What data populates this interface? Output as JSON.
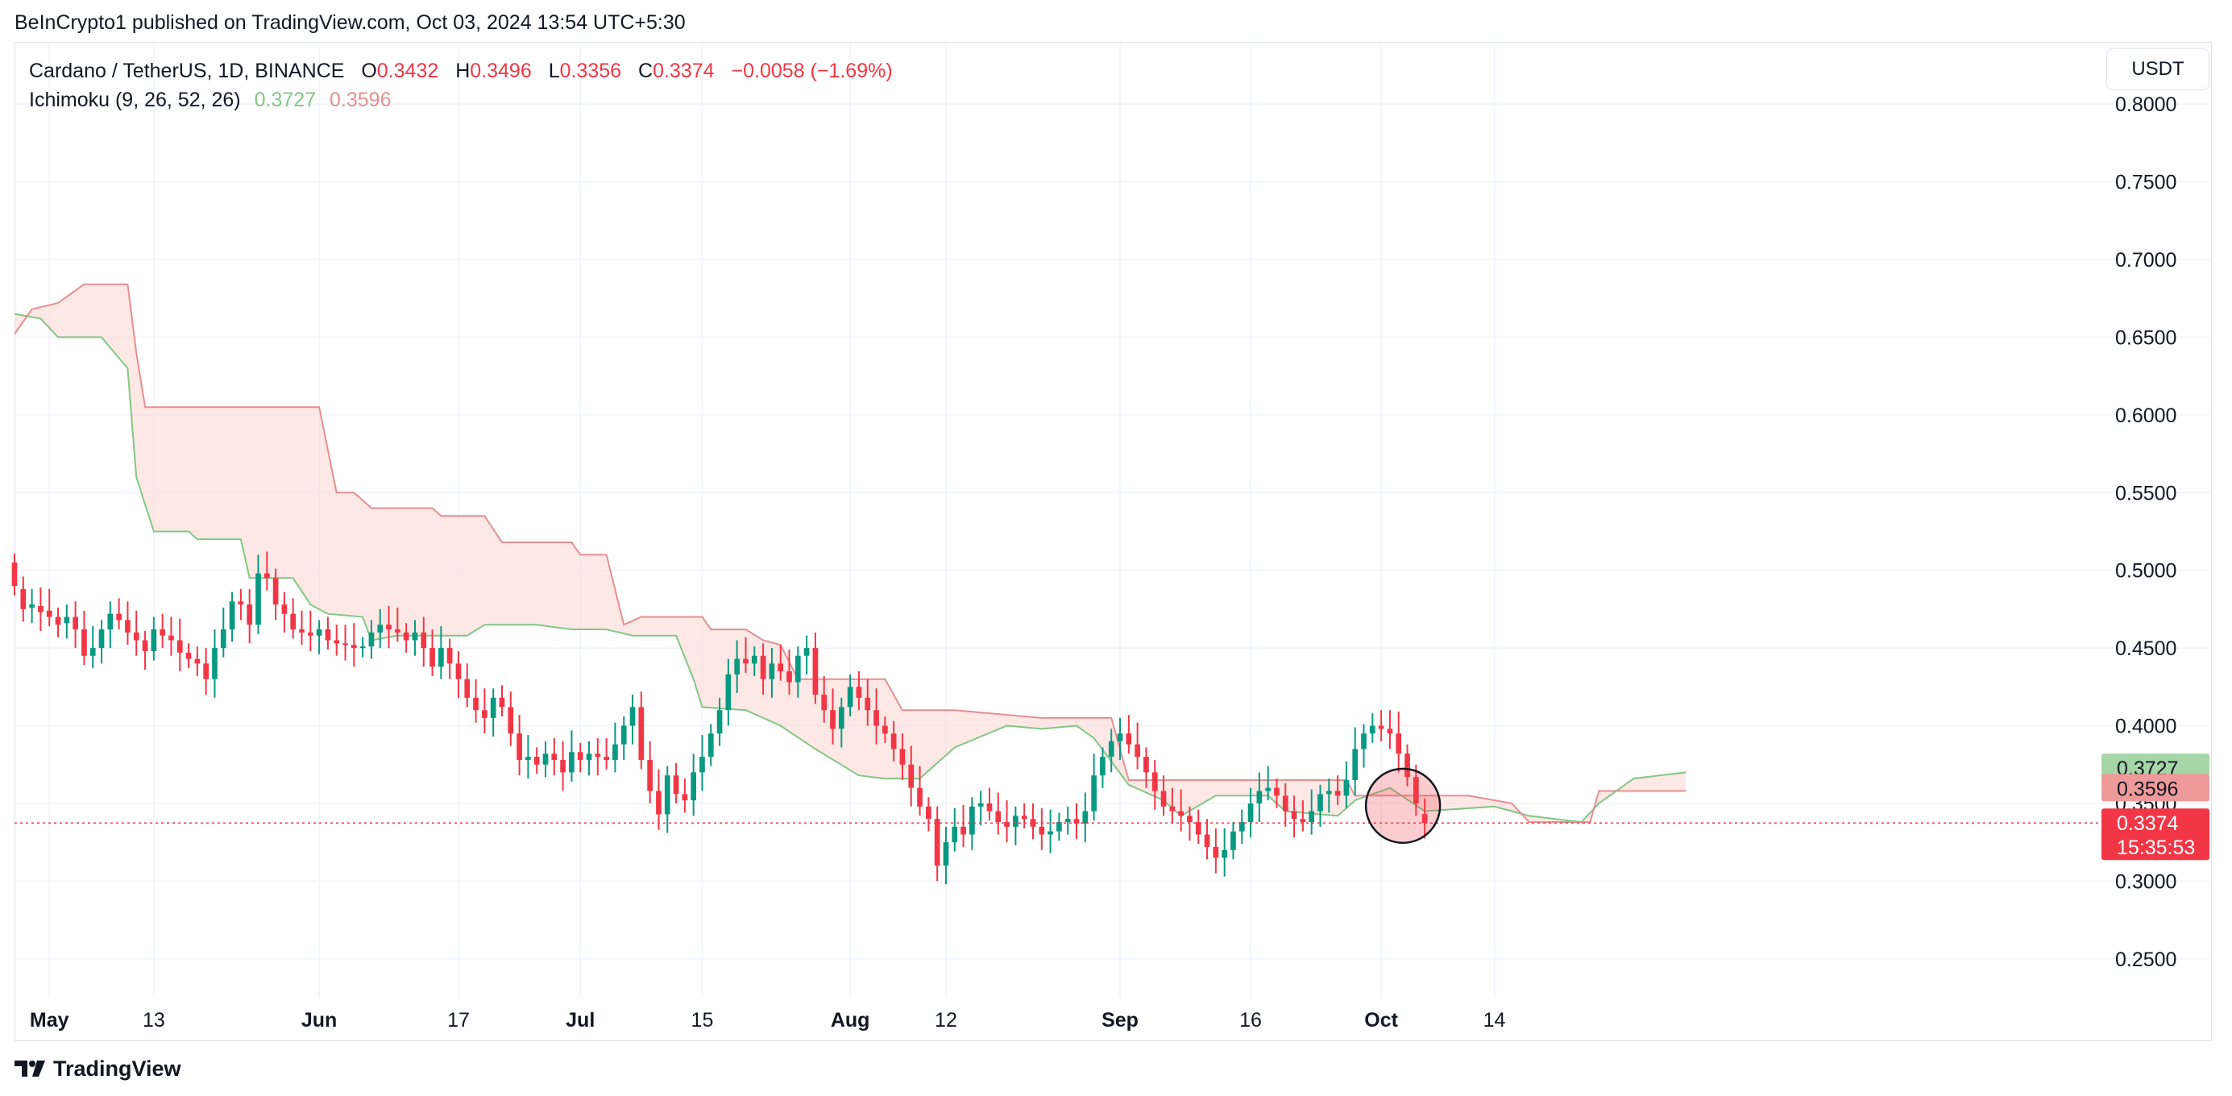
{
  "header": {
    "publisher_line": "BeInCrypto1 published on TradingView.com, Oct 03, 2024 13:54 UTC+5:30"
  },
  "legend": {
    "symbol": "Cardano / TetherUS, 1D, BINANCE",
    "open_key": "O",
    "open": "0.3432",
    "high_key": "H",
    "high": "0.3496",
    "low_key": "L",
    "low": "0.3356",
    "close_key": "C",
    "close": "0.3374",
    "change": "−0.0058 (−1.69%)",
    "indicator": "Ichimoku (9, 26, 52, 26)",
    "span_a": "0.3727",
    "span_b": "0.3596"
  },
  "currency_button": "USDT",
  "footer": {
    "brand": "TradingView"
  },
  "price_tags": {
    "span_a": "0.3727",
    "span_b": "0.3596",
    "last_price": "0.3374",
    "countdown": "15:35:53"
  },
  "colors": {
    "up": "#089981",
    "down": "#f23645",
    "span_a_line": "#81c784",
    "span_b_line": "#e58f8f",
    "cloud_fill": "#fbd9d6",
    "grid": "#f0f3fa",
    "axis_text": "#131722"
  },
  "chart_data": {
    "type": "candlestick",
    "symbol": "ADAUSDT",
    "interval": "1D",
    "y_axis": {
      "ticks": [
        "0.2500",
        "0.3000",
        "0.3500",
        "0.4000",
        "0.4500",
        "0.5000",
        "0.5500",
        "0.6000",
        "0.6500",
        "0.7000",
        "0.7500",
        "0.8000"
      ],
      "range": [
        0.225,
        0.84
      ]
    },
    "x_axis": {
      "range_days": [
        -4,
        235
      ],
      "labels": [
        {
          "t": 0,
          "label": "May",
          "bold": true
        },
        {
          "t": 12,
          "label": "13",
          "bold": false
        },
        {
          "t": 31,
          "label": "Jun",
          "bold": true
        },
        {
          "t": 47,
          "label": "17",
          "bold": false
        },
        {
          "t": 61,
          "label": "Jul",
          "bold": true
        },
        {
          "t": 75,
          "label": "15",
          "bold": false
        },
        {
          "t": 92,
          "label": "Aug",
          "bold": true
        },
        {
          "t": 103,
          "label": "12",
          "bold": false
        },
        {
          "t": 123,
          "label": "Sep",
          "bold": true
        },
        {
          "t": 138,
          "label": "16",
          "bold": false
        },
        {
          "t": 153,
          "label": "Oct",
          "bold": true
        },
        {
          "t": 166,
          "label": "14",
          "bold": false
        }
      ]
    },
    "candles_close": [
      0.49,
      0.475,
      0.478,
      0.473,
      0.47,
      0.465,
      0.47,
      0.462,
      0.445,
      0.45,
      0.462,
      0.472,
      0.468,
      0.46,
      0.455,
      0.448,
      0.462,
      0.458,
      0.455,
      0.447,
      0.443,
      0.44,
      0.43,
      0.45,
      0.462,
      0.48,
      0.478,
      0.465,
      0.498,
      0.495,
      0.478,
      0.472,
      0.462,
      0.46,
      0.458,
      0.462,
      0.455,
      0.453,
      0.452,
      0.45,
      0.451,
      0.46,
      0.465,
      0.462,
      0.46,
      0.455,
      0.46,
      0.45,
      0.438,
      0.45,
      0.44,
      0.43,
      0.418,
      0.41,
      0.405,
      0.418,
      0.412,
      0.395,
      0.378,
      0.38,
      0.375,
      0.382,
      0.378,
      0.37,
      0.383,
      0.378,
      0.382,
      0.38,
      0.378,
      0.388,
      0.4,
      0.412,
      0.378,
      0.358,
      0.343,
      0.368,
      0.356,
      0.352,
      0.37,
      0.38,
      0.395,
      0.41,
      0.433,
      0.443,
      0.44,
      0.445,
      0.43,
      0.44,
      0.435,
      0.428,
      0.445,
      0.45,
      0.42,
      0.41,
      0.398,
      0.412,
      0.425,
      0.418,
      0.41,
      0.4,
      0.395,
      0.385,
      0.375,
      0.36,
      0.348,
      0.34,
      0.31,
      0.325,
      0.335,
      0.33,
      0.348,
      0.35,
      0.345,
      0.338,
      0.335,
      0.342,
      0.34,
      0.335,
      0.33,
      0.332,
      0.338,
      0.34,
      0.337,
      0.345,
      0.368,
      0.38,
      0.39,
      0.395,
      0.388,
      0.38,
      0.37,
      0.358,
      0.348,
      0.345,
      0.342,
      0.338,
      0.33,
      0.322,
      0.315,
      0.32,
      0.332,
      0.338,
      0.35,
      0.358,
      0.36,
      0.355,
      0.345,
      0.34,
      0.338,
      0.345,
      0.356,
      0.358,
      0.355,
      0.365,
      0.385,
      0.395,
      0.4,
      0.398,
      0.395,
      0.382,
      0.367,
      0.35,
      0.3374
    ],
    "candles_open": [
      0.505,
      0.488,
      0.476,
      0.477,
      0.474,
      0.47,
      0.466,
      0.47,
      0.462,
      0.445,
      0.45,
      0.462,
      0.472,
      0.468,
      0.46,
      0.455,
      0.448,
      0.462,
      0.458,
      0.455,
      0.447,
      0.443,
      0.44,
      0.43,
      0.45,
      0.462,
      0.48,
      0.478,
      0.465,
      0.498,
      0.495,
      0.478,
      0.472,
      0.462,
      0.46,
      0.458,
      0.462,
      0.455,
      0.453,
      0.452,
      0.45,
      0.451,
      0.46,
      0.465,
      0.462,
      0.46,
      0.455,
      0.46,
      0.45,
      0.438,
      0.45,
      0.44,
      0.43,
      0.418,
      0.41,
      0.405,
      0.418,
      0.412,
      0.395,
      0.378,
      0.38,
      0.375,
      0.382,
      0.378,
      0.37,
      0.383,
      0.378,
      0.382,
      0.38,
      0.378,
      0.388,
      0.4,
      0.412,
      0.378,
      0.358,
      0.343,
      0.368,
      0.356,
      0.352,
      0.37,
      0.38,
      0.395,
      0.41,
      0.433,
      0.443,
      0.44,
      0.445,
      0.43,
      0.44,
      0.435,
      0.428,
      0.445,
      0.45,
      0.42,
      0.41,
      0.398,
      0.412,
      0.425,
      0.418,
      0.41,
      0.4,
      0.395,
      0.385,
      0.375,
      0.36,
      0.348,
      0.34,
      0.31,
      0.325,
      0.335,
      0.33,
      0.348,
      0.35,
      0.345,
      0.338,
      0.335,
      0.342,
      0.34,
      0.335,
      0.33,
      0.332,
      0.338,
      0.34,
      0.337,
      0.345,
      0.368,
      0.38,
      0.39,
      0.395,
      0.388,
      0.38,
      0.37,
      0.358,
      0.348,
      0.345,
      0.342,
      0.338,
      0.33,
      0.322,
      0.315,
      0.32,
      0.332,
      0.338,
      0.35,
      0.358,
      0.36,
      0.355,
      0.345,
      0.34,
      0.338,
      0.345,
      0.356,
      0.358,
      0.355,
      0.365,
      0.385,
      0.395,
      0.4,
      0.398,
      0.395,
      0.382,
      0.367,
      0.3432
    ],
    "candle_start_day": -4,
    "cloud": {
      "span_a_points": [
        [
          -4,
          0.665
        ],
        [
          -1,
          0.662
        ],
        [
          1,
          0.65
        ],
        [
          6,
          0.65
        ],
        [
          9,
          0.63
        ],
        [
          10,
          0.56
        ],
        [
          12,
          0.525
        ],
        [
          16,
          0.525
        ],
        [
          17,
          0.52
        ],
        [
          22,
          0.52
        ],
        [
          23,
          0.495
        ],
        [
          28,
          0.495
        ],
        [
          30,
          0.478
        ],
        [
          32,
          0.472
        ],
        [
          36,
          0.47
        ],
        [
          37,
          0.455
        ],
        [
          40,
          0.458
        ],
        [
          48,
          0.458
        ],
        [
          50,
          0.465
        ],
        [
          56,
          0.465
        ],
        [
          60,
          0.462
        ],
        [
          64,
          0.462
        ],
        [
          67,
          0.458
        ],
        [
          72,
          0.458
        ],
        [
          74,
          0.43
        ],
        [
          75,
          0.412
        ],
        [
          80,
          0.41
        ],
        [
          84,
          0.4
        ],
        [
          88,
          0.385
        ],
        [
          93,
          0.368
        ],
        [
          96,
          0.366
        ],
        [
          100,
          0.366
        ],
        [
          104,
          0.386
        ],
        [
          110,
          0.4
        ],
        [
          114,
          0.398
        ],
        [
          118,
          0.4
        ],
        [
          120,
          0.392
        ],
        [
          124,
          0.362
        ],
        [
          128,
          0.352
        ],
        [
          130,
          0.342
        ],
        [
          134,
          0.355
        ],
        [
          140,
          0.355
        ],
        [
          142,
          0.345
        ],
        [
          148,
          0.342
        ],
        [
          150,
          0.352
        ],
        [
          154,
          0.36
        ],
        [
          158,
          0.345
        ],
        [
          166,
          0.348
        ],
        [
          170,
          0.342
        ],
        [
          176,
          0.338
        ],
        [
          178,
          0.35
        ],
        [
          182,
          0.366
        ],
        [
          188,
          0.37
        ]
      ],
      "span_b_points": [
        [
          -4,
          0.652
        ],
        [
          -2,
          0.668
        ],
        [
          1,
          0.672
        ],
        [
          4,
          0.684
        ],
        [
          9,
          0.684
        ],
        [
          10,
          0.64
        ],
        [
          11,
          0.605
        ],
        [
          31,
          0.605
        ],
        [
          33,
          0.55
        ],
        [
          35,
          0.55
        ],
        [
          37,
          0.54
        ],
        [
          44,
          0.54
        ],
        [
          45,
          0.535
        ],
        [
          50,
          0.535
        ],
        [
          52,
          0.518
        ],
        [
          60,
          0.518
        ],
        [
          61,
          0.51
        ],
        [
          64,
          0.51
        ],
        [
          66,
          0.465
        ],
        [
          68,
          0.47
        ],
        [
          75,
          0.47
        ],
        [
          76,
          0.462
        ],
        [
          80,
          0.462
        ],
        [
          82,
          0.455
        ],
        [
          84,
          0.452
        ],
        [
          86,
          0.43
        ],
        [
          96,
          0.43
        ],
        [
          98,
          0.41
        ],
        [
          104,
          0.41
        ],
        [
          114,
          0.405
        ],
        [
          122,
          0.405
        ],
        [
          124,
          0.365
        ],
        [
          149,
          0.365
        ],
        [
          150,
          0.355
        ],
        [
          163,
          0.355
        ],
        [
          168,
          0.35
        ],
        [
          170,
          0.338
        ],
        [
          177,
          0.338
        ],
        [
          178,
          0.358
        ],
        [
          188,
          0.358
        ]
      ]
    },
    "last_price_line": 0.3374,
    "highlight_circle": {
      "t": 155.5,
      "price": 0.3485
    }
  }
}
